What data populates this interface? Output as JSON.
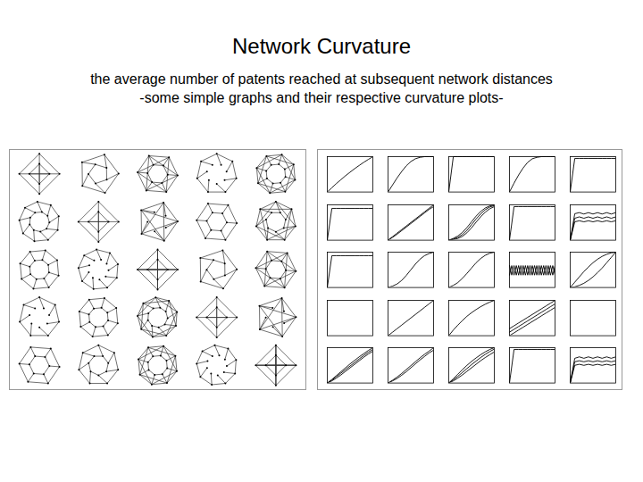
{
  "slide": {
    "title": "Network Curvature",
    "subtitle_lines": [
      "the average number of patents reached at subsequent network distances",
      "-some simple graphs and their respective curvature plots-"
    ]
  },
  "chart_data": [
    {
      "type": "line",
      "x": [
        0,
        1,
        2,
        3,
        4,
        5,
        6,
        7,
        8,
        9,
        10
      ],
      "xlim": [
        0,
        10
      ],
      "ylim": [
        0,
        1
      ],
      "tick_labels": false,
      "series": [
        {
          "values": [
            0,
            0.12,
            0.24,
            0.35,
            0.46,
            0.56,
            0.66,
            0.75,
            0.84,
            0.92,
            1
          ]
        }
      ]
    },
    {
      "type": "line",
      "x": [
        0,
        1,
        2,
        3,
        4,
        5,
        6,
        7,
        8,
        9,
        10
      ],
      "xlim": [
        0,
        10
      ],
      "ylim": [
        0,
        1
      ],
      "tick_labels": false,
      "series": [
        {
          "values": [
            0,
            0.2,
            0.4,
            0.58,
            0.74,
            0.86,
            0.94,
            0.98,
            1,
            1,
            1
          ]
        }
      ]
    },
    {
      "type": "line",
      "x": [
        0,
        1,
        2,
        3,
        4,
        5,
        6,
        7,
        8,
        9,
        10
      ],
      "xlim": [
        0,
        10
      ],
      "ylim": [
        0,
        1
      ],
      "tick_labels": false,
      "series": [
        {
          "values": [
            0,
            1,
            1,
            1,
            1,
            1,
            1,
            1,
            1,
            1,
            1
          ]
        }
      ]
    },
    {
      "type": "line",
      "x": [
        0,
        1,
        2,
        3,
        4,
        5,
        6,
        7,
        8,
        9,
        10
      ],
      "xlim": [
        0,
        10
      ],
      "ylim": [
        0,
        1
      ],
      "tick_labels": false,
      "series": [
        {
          "values": [
            0,
            0.25,
            0.48,
            0.68,
            0.84,
            0.94,
            0.98,
            1,
            1,
            1,
            1
          ]
        }
      ]
    },
    {
      "type": "line",
      "x": [
        0,
        1,
        2,
        3,
        4,
        5,
        6,
        7,
        8,
        9,
        10
      ],
      "xlim": [
        0,
        10
      ],
      "ylim": [
        0,
        1
      ],
      "tick_labels": false,
      "series": [
        {
          "values": [
            0,
            0.95,
            0.95,
            0.95,
            0.95,
            0.95,
            0.95,
            0.95,
            0.95,
            0.95,
            0.95
          ]
        }
      ]
    },
    {
      "type": "line",
      "x": [
        0,
        1,
        2,
        3,
        4,
        5,
        6,
        7,
        8,
        9,
        10
      ],
      "xlim": [
        0,
        10
      ],
      "ylim": [
        0,
        1
      ],
      "tick_labels": false,
      "series": [
        {
          "values": [
            0,
            0.9,
            0.9,
            0.9,
            0.9,
            0.9,
            0.9,
            0.9,
            0.9,
            0.9,
            0.9
          ]
        }
      ]
    },
    {
      "type": "line",
      "x": [
        0,
        1,
        2,
        3,
        4,
        5,
        6,
        7,
        8,
        9,
        10
      ],
      "xlim": [
        0,
        10
      ],
      "ylim": [
        0,
        1
      ],
      "tick_labels": false,
      "series": [
        {
          "values": [
            0,
            0.1,
            0.2,
            0.3,
            0.4,
            0.5,
            0.6,
            0.7,
            0.8,
            0.9,
            1
          ]
        },
        {
          "values": [
            0,
            0.08,
            0.17,
            0.27,
            0.37,
            0.47,
            0.57,
            0.67,
            0.77,
            0.87,
            0.95
          ]
        }
      ]
    },
    {
      "type": "line",
      "x": [
        0,
        1,
        2,
        3,
        4,
        5,
        6,
        7,
        8,
        9,
        10
      ],
      "xlim": [
        0,
        10
      ],
      "ylim": [
        0,
        1
      ],
      "tick_labels": false,
      "series": [
        {
          "values": [
            0,
            0.05,
            0.12,
            0.22,
            0.36,
            0.52,
            0.68,
            0.81,
            0.91,
            0.97,
            1
          ]
        },
        {
          "values": [
            0,
            0.03,
            0.08,
            0.16,
            0.28,
            0.44,
            0.6,
            0.74,
            0.86,
            0.94,
            0.98
          ]
        },
        {
          "values": [
            0,
            0.02,
            0.05,
            0.11,
            0.21,
            0.35,
            0.51,
            0.66,
            0.79,
            0.89,
            0.95
          ]
        }
      ]
    },
    {
      "type": "line",
      "x": [
        0,
        1,
        2,
        3,
        4,
        5,
        6,
        7,
        8,
        9,
        10
      ],
      "xlim": [
        0,
        10
      ],
      "ylim": [
        0,
        1
      ],
      "tick_labels": false,
      "series": [
        {
          "values": [
            0,
            0.95,
            0.95,
            0.95,
            0.95,
            0.95,
            0.95,
            0.95,
            0.95,
            0.95,
            0.95
          ]
        }
      ]
    },
    {
      "type": "line",
      "x": [
        0,
        1,
        2,
        3,
        4,
        5,
        6,
        7,
        8,
        9,
        10
      ],
      "xlim": [
        0,
        10
      ],
      "ylim": [
        0,
        1
      ],
      "tick_labels": false,
      "series": [
        {
          "values": [
            0,
            0.75,
            0.78,
            0.74,
            0.78,
            0.74,
            0.78,
            0.74,
            0.78,
            0.74,
            0.78
          ]
        },
        {
          "values": [
            0,
            0.62,
            0.66,
            0.62,
            0.66,
            0.62,
            0.66,
            0.62,
            0.66,
            0.62,
            0.66
          ]
        },
        {
          "values": [
            0,
            0.52,
            0.55,
            0.52,
            0.55,
            0.52,
            0.55,
            0.52,
            0.55,
            0.52,
            0.55
          ]
        }
      ]
    },
    {
      "type": "line",
      "x": [
        0,
        1,
        2,
        3,
        4,
        5,
        6,
        7,
        8,
        9,
        10
      ],
      "xlim": [
        0,
        10
      ],
      "ylim": [
        0,
        1
      ],
      "tick_labels": false,
      "series": [
        {
          "values": [
            0,
            0.9,
            0.9,
            0.9,
            0.9,
            0.9,
            0.9,
            0.9,
            0.9,
            0.9,
            0.9
          ]
        }
      ]
    },
    {
      "type": "line",
      "x": [
        0,
        1,
        2,
        3,
        4,
        5,
        6,
        7,
        8,
        9,
        10
      ],
      "xlim": [
        0,
        10
      ],
      "ylim": [
        0,
        1
      ],
      "tick_labels": false,
      "series": [
        {
          "values": [
            0,
            0.04,
            0.1,
            0.2,
            0.34,
            0.5,
            0.66,
            0.8,
            0.9,
            0.96,
            1
          ]
        }
      ]
    },
    {
      "type": "line",
      "x": [
        0,
        1,
        2,
        3,
        4,
        5,
        6,
        7,
        8,
        9,
        10
      ],
      "xlim": [
        0,
        10
      ],
      "ylim": [
        0,
        1
      ],
      "tick_labels": false,
      "series": [
        {
          "values": [
            0,
            0.06,
            0.14,
            0.26,
            0.4,
            0.55,
            0.7,
            0.82,
            0.91,
            0.97,
            1
          ]
        }
      ]
    },
    {
      "type": "line",
      "x": [
        0,
        0.5,
        1,
        1.5,
        2,
        2.5,
        3,
        3.5,
        4,
        4.5,
        5,
        5.5,
        6,
        6.5,
        7,
        7.5,
        8,
        8.5,
        9,
        9.5,
        10
      ],
      "xlim": [
        0,
        10
      ],
      "ylim": [
        0,
        1
      ],
      "tick_labels": false,
      "series": [
        {
          "values": [
            0.35,
            0.62,
            0.35,
            0.62,
            0.35,
            0.62,
            0.35,
            0.62,
            0.35,
            0.62,
            0.35,
            0.62,
            0.35,
            0.62,
            0.35,
            0.62,
            0.35,
            0.62,
            0.35,
            0.62,
            0.35
          ]
        },
        {
          "values": [
            0.62,
            0.35,
            0.62,
            0.35,
            0.62,
            0.35,
            0.62,
            0.35,
            0.62,
            0.35,
            0.62,
            0.35,
            0.62,
            0.35,
            0.62,
            0.35,
            0.62,
            0.35,
            0.62,
            0.35,
            0.62
          ]
        }
      ]
    },
    {
      "type": "line",
      "x": [
        0,
        1,
        2,
        3,
        4,
        5,
        6,
        7,
        8,
        9,
        10
      ],
      "xlim": [
        0,
        10
      ],
      "ylim": [
        0,
        1
      ],
      "tick_labels": false,
      "series": [
        {
          "values": [
            0,
            0.02,
            0.06,
            0.12,
            0.2,
            0.3,
            0.42,
            0.55,
            0.7,
            0.85,
            1
          ]
        },
        {
          "values": [
            0,
            0.15,
            0.3,
            0.45,
            0.58,
            0.7,
            0.8,
            0.88,
            0.94,
            0.98,
            1
          ]
        }
      ]
    },
    {
      "type": "line",
      "x": [
        0,
        1,
        2,
        3,
        4,
        5,
        6,
        7,
        8,
        9,
        10
      ],
      "xlim": [
        0,
        10
      ],
      "ylim": [
        0,
        1
      ],
      "tick_labels": false,
      "series": []
    },
    {
      "type": "line",
      "x": [
        0,
        1,
        2,
        3,
        4,
        5,
        6,
        7,
        8,
        9,
        10
      ],
      "xlim": [
        0,
        10
      ],
      "ylim": [
        0,
        1
      ],
      "tick_labels": false,
      "series": [
        {
          "values": [
            0,
            0.1,
            0.2,
            0.3,
            0.4,
            0.5,
            0.6,
            0.7,
            0.8,
            0.9,
            1
          ]
        }
      ]
    },
    {
      "type": "line",
      "x": [
        0,
        1,
        2,
        3,
        4,
        5,
        6,
        7,
        8,
        9,
        10
      ],
      "xlim": [
        0,
        10
      ],
      "ylim": [
        0,
        1
      ],
      "tick_labels": false,
      "series": [
        {
          "values": [
            0,
            0.16,
            0.3,
            0.43,
            0.55,
            0.65,
            0.74,
            0.82,
            0.89,
            0.95,
            1
          ]
        }
      ]
    },
    {
      "type": "line",
      "x": [
        0,
        1,
        2,
        3,
        4,
        5,
        6,
        7,
        8,
        9,
        10
      ],
      "xlim": [
        0,
        10
      ],
      "ylim": [
        0,
        1
      ],
      "tick_labels": false,
      "series": [
        {
          "values": [
            0.2,
            0.28,
            0.36,
            0.44,
            0.52,
            0.6,
            0.68,
            0.76,
            0.84,
            0.92,
            1
          ]
        },
        {
          "values": [
            0.1,
            0.18,
            0.26,
            0.34,
            0.42,
            0.5,
            0.58,
            0.66,
            0.74,
            0.82,
            0.9
          ]
        },
        {
          "values": [
            0,
            0.08,
            0.16,
            0.24,
            0.32,
            0.4,
            0.48,
            0.56,
            0.64,
            0.72,
            0.8
          ]
        }
      ]
    },
    {
      "type": "line",
      "x": [
        0,
        1,
        2,
        3,
        4,
        5,
        6,
        7,
        8,
        9,
        10
      ],
      "xlim": [
        0,
        10
      ],
      "ylim": [
        0,
        1
      ],
      "tick_labels": false,
      "series": []
    },
    {
      "type": "line",
      "x": [
        0,
        1,
        2,
        3,
        4,
        5,
        6,
        7,
        8,
        9,
        10
      ],
      "xlim": [
        0,
        10
      ],
      "ylim": [
        0,
        1
      ],
      "tick_labels": false,
      "series": [
        {
          "values": [
            0,
            0.1,
            0.21,
            0.32,
            0.43,
            0.54,
            0.64,
            0.74,
            0.83,
            0.92,
            1
          ]
        },
        {
          "values": [
            0,
            0.08,
            0.18,
            0.28,
            0.38,
            0.48,
            0.58,
            0.68,
            0.78,
            0.87,
            0.95
          ]
        },
        {
          "values": [
            0,
            0.06,
            0.14,
            0.23,
            0.33,
            0.43,
            0.53,
            0.63,
            0.73,
            0.82,
            0.9
          ]
        }
      ]
    },
    {
      "type": "line",
      "x": [
        0,
        1,
        2,
        3,
        4,
        5,
        6,
        7,
        8,
        9,
        10
      ],
      "xlim": [
        0,
        10
      ],
      "ylim": [
        0,
        1
      ],
      "tick_labels": false,
      "series": [
        {
          "values": [
            0,
            0.08,
            0.17,
            0.27,
            0.38,
            0.49,
            0.6,
            0.71,
            0.81,
            0.9,
            1
          ]
        },
        {
          "values": [
            0,
            0.06,
            0.13,
            0.22,
            0.32,
            0.43,
            0.54,
            0.65,
            0.75,
            0.85,
            0.93
          ]
        }
      ]
    },
    {
      "type": "line",
      "x": [
        0,
        1,
        2,
        3,
        4,
        5,
        6,
        7,
        8,
        9,
        10
      ],
      "xlim": [
        0,
        10
      ],
      "ylim": [
        0,
        1
      ],
      "tick_labels": false,
      "series": [
        {
          "values": [
            0,
            0.12,
            0.25,
            0.38,
            0.5,
            0.61,
            0.71,
            0.8,
            0.88,
            0.95,
            1
          ]
        },
        {
          "values": [
            0,
            0.09,
            0.19,
            0.3,
            0.41,
            0.52,
            0.62,
            0.72,
            0.81,
            0.89,
            0.96
          ]
        },
        {
          "values": [
            0,
            0.06,
            0.14,
            0.23,
            0.33,
            0.43,
            0.53,
            0.63,
            0.72,
            0.8,
            0.88
          ]
        }
      ]
    },
    {
      "type": "line",
      "x": [
        0,
        1,
        2,
        3,
        4,
        5,
        6,
        7,
        8,
        9,
        10
      ],
      "xlim": [
        0,
        10
      ],
      "ylim": [
        0,
        1
      ],
      "tick_labels": false,
      "series": [
        {
          "values": [
            0,
            0.95,
            0.95,
            0.95,
            0.95,
            0.95,
            0.95,
            0.95,
            0.95,
            0.95,
            0.95
          ]
        }
      ]
    },
    {
      "type": "line",
      "x": [
        0,
        1,
        2,
        3,
        4,
        5,
        6,
        7,
        8,
        9,
        10
      ],
      "xlim": [
        0,
        10
      ],
      "ylim": [
        0,
        1
      ],
      "tick_labels": false,
      "series": [
        {
          "values": [
            0,
            0.7,
            0.74,
            0.7,
            0.74,
            0.7,
            0.74,
            0.7,
            0.74,
            0.7,
            0.74
          ]
        },
        {
          "values": [
            0,
            0.6,
            0.63,
            0.6,
            0.63,
            0.6,
            0.63,
            0.6,
            0.63,
            0.6,
            0.63
          ]
        },
        {
          "values": [
            0,
            0.5,
            0.53,
            0.5,
            0.53,
            0.5,
            0.53,
            0.5,
            0.53,
            0.5,
            0.53
          ]
        }
      ]
    }
  ]
}
